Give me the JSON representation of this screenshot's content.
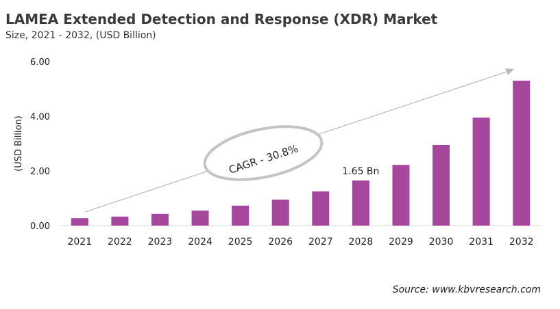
{
  "chart_data": {
    "type": "bar",
    "title": "LAMEA Extended Detection and Response (XDR) Market",
    "subtitle": "Size, 2021 - 2032, (USD Billion)",
    "xlabel": "",
    "ylabel": "(USD Billion)",
    "categories": [
      "2021",
      "2022",
      "2023",
      "2024",
      "2025",
      "2026",
      "2027",
      "2028",
      "2029",
      "2030",
      "2031",
      "2032"
    ],
    "values": [
      0.27,
      0.33,
      0.43,
      0.55,
      0.73,
      0.95,
      1.25,
      1.65,
      2.22,
      2.95,
      3.95,
      5.3
    ],
    "ylim": [
      0,
      6
    ],
    "yticks": [
      "0.00",
      "2.00",
      "4.00",
      "6.00"
    ],
    "grid": false,
    "bar_color": "#a6479e",
    "annotations": {
      "data_label": "1.65 Bn",
      "cagr": "CAGR - 30.8%"
    },
    "source": "Source: www.kbvresearch.com"
  }
}
